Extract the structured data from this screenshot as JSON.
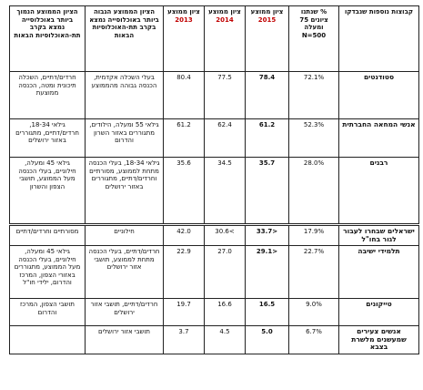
{
  "headers": {
    "group": "קבוצות נוספות שנבדקו",
    "pct": "% שנתנו ציונים 75 ומעלה N=500",
    "y2015": {
      "label": "ציון ממוצע",
      "year": "2015"
    },
    "y2014": {
      "label": "ציון ממוצע",
      "year": "2014"
    },
    "y2013": {
      "label": "ציון ממוצע",
      "year": "2013"
    },
    "high": "הציון הממוצע הגבוה ביותר באוכלוסייה נמצא בקרב תת-האוכלוסיות הבאות",
    "low": "הציון הממוצע הנמוך ביותר באוכלוסייה נמצא בקרב תת-האוכלוסיות הבאות"
  },
  "rows": [
    {
      "group": "סטודנטים",
      "pct": "72.1%",
      "s2015": "78.4",
      "s2014": "77.5",
      "s2013": "80.4",
      "high": "בעלי השכלה אקדמית, הכנסה גבוהה מהממוצע",
      "low": "חרדים/דתיים, השכלה תיכונית ומטה, הכנסה ממוצעת"
    },
    {
      "group": "אנשי המחאה החברתית",
      "pct": "52.3%",
      "s2015": "61.2",
      "s2014": "62.4",
      "s2013": "61.2",
      "high": "גילאי 55 ומעלה, הילודים, מתגוררים באזור השרון והדרום",
      "low": "גילאי 18-34, חרדים/דתיים, מתגוררים באזור ירושלים"
    },
    {
      "group": "רבנים",
      "pct": "28.0%",
      "s2015": "35.7",
      "s2014": "34.5",
      "s2013": "35.6",
      "high": "גילאי 18-34, בעלי הכנסה מתחת לממוצע, מסורתיים וחרדים/דתיים, מתגוררים באזור ירושלים",
      "low": "גילאי 45 ומעלה, חילוניים, בעלי הכנסה מעל הממוצע, תושבי הצפון והשרון"
    },
    {
      "group": "ישראלים שבחרו לעבור לגור בחו\"ל",
      "pct": "17.9%",
      "s2015": "<33.7",
      "s2014": ">30.6",
      "s2013": "42.0",
      "high": "חילוניים",
      "low": "מסורתיים וחרדים/דתיים"
    },
    {
      "group": "תלמידי ישיבה",
      "pct": "22.7%",
      "s2015": "<29.1",
      "s2014": "27.0",
      "s2013": "22.9",
      "high": "חרדים/דתיים, בעלי הכנסה מתחת לממוצע, תושבי אזור ירושלים",
      "low": "גילאי 45 ומעלה, חילוניים, בעלי הכנסה מעל הממוצע, מתגוררים באזורי הצפון, המרכז והדרום, ילידי חו\"ל"
    },
    {
      "group": "טייקונים",
      "pct": "9.0%",
      "s2015": "16.5",
      "s2014": "16.6",
      "s2013": "19.7",
      "high": "חרדים/דתיים, תושבי אזור ירושלים",
      "low": "תושבי הצפון, המרכז והדרום"
    },
    {
      "group": "אנשים צעירים שמעשנים מלשרת בצבא",
      "pct": "6.7%",
      "s2015": "5.0",
      "s2014": "4.5",
      "s2013": "3.7",
      "high": "תושבי אזור ירושלים",
      "low": ""
    }
  ]
}
